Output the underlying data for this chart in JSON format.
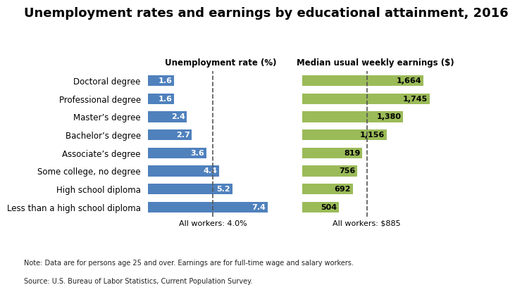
{
  "title": "Unemployment rates and earnings by educational attainment, 2016",
  "categories": [
    "Doctoral degree",
    "Professional degree",
    "Master’s degree",
    "Bachelor’s degree",
    "Associate’s degree",
    "Some college, no degree",
    "High school diploma",
    "Less than a high school diploma"
  ],
  "unemployment": [
    1.6,
    1.6,
    2.4,
    2.7,
    3.6,
    4.4,
    5.2,
    7.4
  ],
  "earnings": [
    1664,
    1745,
    1380,
    1156,
    819,
    756,
    692,
    504
  ],
  "unemployment_color": "#4f81bd",
  "earnings_color": "#9bbb59",
  "unemp_label": "Unemployment rate (%)",
  "earn_label": "Median usual weekly earnings ($)",
  "all_workers_unemp": 4.0,
  "all_workers_earn": 885,
  "all_workers_unemp_label": "All workers: 4.0%",
  "all_workers_earn_label": "All workers: $885",
  "note_line1": "Note: Data are for persons age 25 and over. Earnings are for full-time wage and salary workers.",
  "note_line2": "Source: U.S. Bureau of Labor Statistics, Current Population Survey.",
  "unemp_xlim": [
    0,
    9
  ],
  "earn_xlim": [
    0,
    2000
  ],
  "bar_height": 0.6,
  "title_fontsize": 13,
  "label_fontsize": 8.5,
  "bar_val_fontsize": 8,
  "note_fontsize": 7,
  "annot_fontsize": 8
}
